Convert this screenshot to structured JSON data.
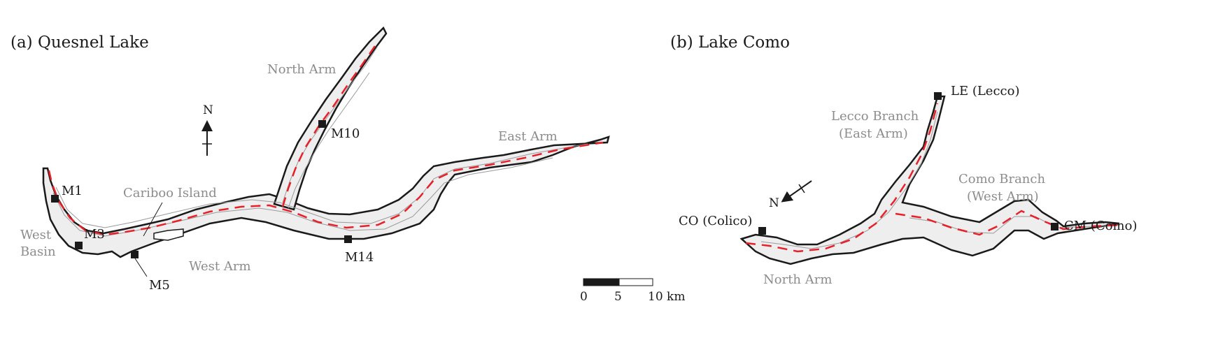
{
  "panels": [
    {
      "title": "(a) Quesnel Lake",
      "regions": [
        "North Arm",
        "East Arm",
        "Cariboo Island",
        "West Basin",
        "West Arm"
      ],
      "stations": [
        "M1",
        "M3",
        "M5",
        "M10",
        "M14"
      ],
      "north_label": "N"
    },
    {
      "title": "(b) Lake Como",
      "regions": [
        "Lecco Branch",
        "(East Arm)",
        "Como Branch",
        "(West Arm)",
        "North Arm"
      ],
      "stations": [
        "LE (Lecco)",
        "CO (Colico)",
        "CM (Como)"
      ],
      "north_label": "N"
    }
  ],
  "scale_bar": {
    "ticks": [
      "0",
      "5",
      "10 km"
    ]
  },
  "colors": {
    "shoreline": "#1a1a1a",
    "contours": "#9a9a9a",
    "lake_fill": "#eeeeee",
    "thalweg": "#e8202a",
    "label_gray": "#8c8c8c",
    "station_marker": "#1a1a1a"
  }
}
